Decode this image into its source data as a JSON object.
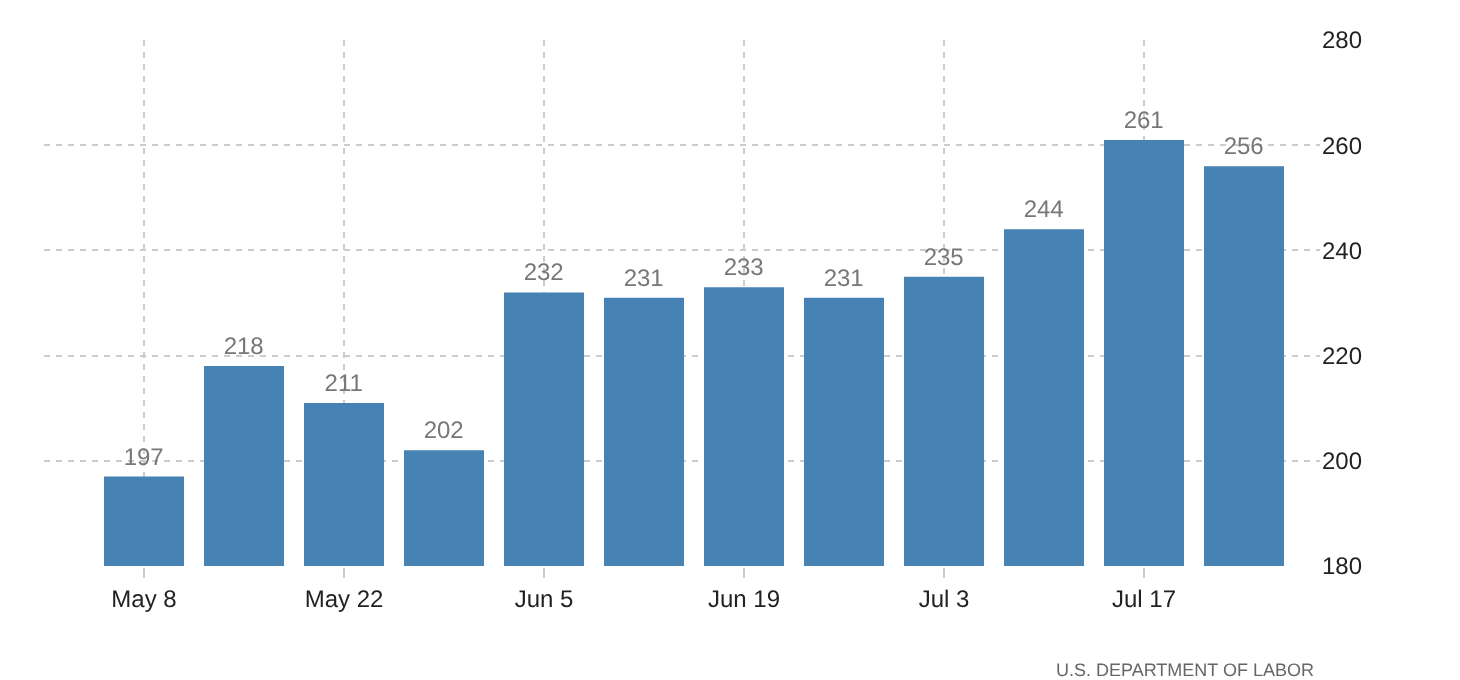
{
  "chart_data": {
    "type": "bar",
    "categories": [
      "May 8",
      null,
      "May 22",
      null,
      "Jun 5",
      null,
      "Jun 19",
      null,
      "Jul 3",
      null,
      "Jul 17",
      null
    ],
    "values": [
      197,
      218,
      211,
      202,
      232,
      231,
      233,
      231,
      235,
      244,
      261,
      256
    ],
    "color": "#4682b4",
    "ylim": [
      180,
      280
    ],
    "yticks": [
      180,
      200,
      220,
      240,
      260,
      280
    ],
    "grid": true,
    "data_labels": true,
    "annotations": [
      "U.S. DEPARTMENT OF LABOR"
    ]
  }
}
